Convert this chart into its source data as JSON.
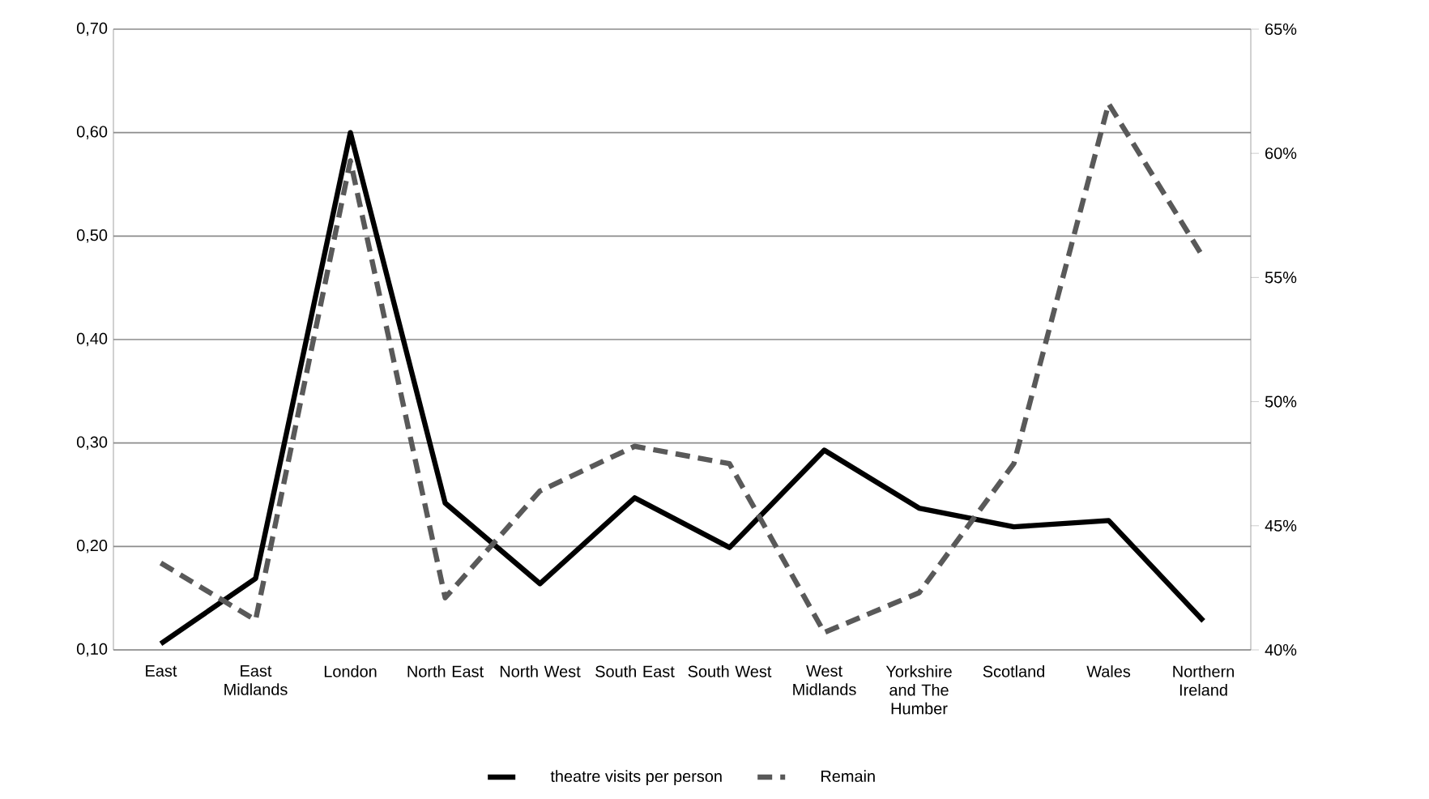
{
  "chart_data": {
    "type": "line",
    "categories": [
      "East",
      "East Midlands",
      "London",
      "North East",
      "North West",
      "South East",
      "South West",
      "West Midlands",
      "Yorkshire and The Humber",
      "Scotland",
      "Wales",
      "Northern Ireland"
    ],
    "series": [
      {
        "name": "theatre visits per person",
        "color": "#000000",
        "line_style": "solid",
        "values": [
          0.106,
          0.169,
          0.6,
          0.242,
          0.164,
          0.247,
          0.199,
          0.293,
          0.237,
          0.219,
          0.225,
          0.128
        ]
      },
      {
        "name": "Remain",
        "color": "#595959",
        "line_style": "dashed",
        "axis": "y2",
        "values": [
          43.5,
          41.2,
          59.7,
          42.1,
          46.4,
          48.2,
          47.5,
          40.7,
          42.3,
          47.5,
          62.0,
          55.8
        ]
      }
    ],
    "ylim": [
      0.1,
      0.7
    ],
    "yticks": [
      {
        "value": 0.1,
        "label": "0,10"
      },
      {
        "value": 0.2,
        "label": "0,20"
      },
      {
        "value": 0.3,
        "label": "0,30"
      },
      {
        "value": 0.4,
        "label": "0,40"
      },
      {
        "value": 0.5,
        "label": "0,50"
      },
      {
        "value": 0.6,
        "label": "0,60"
      },
      {
        "value": 0.7,
        "label": "0,70"
      }
    ],
    "y2lim": [
      40,
      65
    ],
    "y2ticks": [
      {
        "value": 40,
        "label": "40%"
      },
      {
        "value": 45,
        "label": "45%"
      },
      {
        "value": 50,
        "label": "50%"
      },
      {
        "value": 55,
        "label": "55%"
      },
      {
        "value": 60,
        "label": "60%"
      },
      {
        "value": 65,
        "label": "65%"
      }
    ],
    "grid": "y",
    "legend": "bottom",
    "marker": "none"
  }
}
